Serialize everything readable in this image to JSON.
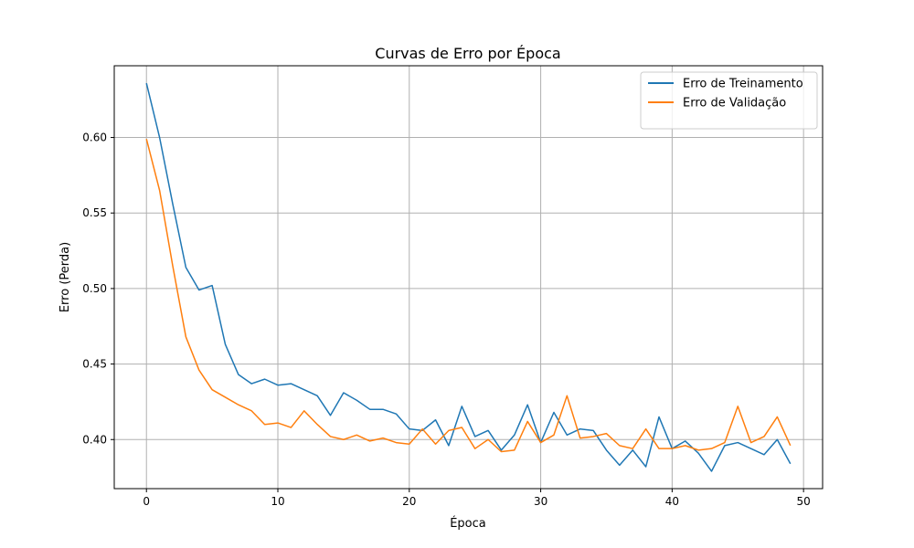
{
  "chart_data": {
    "type": "line",
    "title": "Curvas de Erro por Época",
    "xlabel": "Época",
    "ylabel": "Erro (Perda)",
    "xlim": [
      -2.45,
      51.45
    ],
    "ylim": [
      0.3675,
      0.6475
    ],
    "xticks": [
      0,
      10,
      20,
      30,
      40,
      50
    ],
    "xtick_labels": [
      "0",
      "10",
      "20",
      "30",
      "40",
      "50"
    ],
    "yticks": [
      0.4,
      0.45,
      0.5,
      0.55,
      0.6
    ],
    "ytick_labels": [
      "0.40",
      "0.45",
      "0.50",
      "0.55",
      "0.60"
    ],
    "grid": true,
    "legend_position": "top-right",
    "x": [
      0,
      1,
      2,
      3,
      4,
      5,
      6,
      7,
      8,
      9,
      10,
      11,
      12,
      13,
      14,
      15,
      16,
      17,
      18,
      19,
      20,
      21,
      22,
      23,
      24,
      25,
      26,
      27,
      28,
      29,
      30,
      31,
      32,
      33,
      34,
      35,
      36,
      37,
      38,
      39,
      40,
      41,
      42,
      43,
      44,
      45,
      46,
      47,
      48,
      49
    ],
    "series": [
      {
        "name": "Erro de Treinamento",
        "color": "#1f77b4",
        "values": [
          0.636,
          0.6,
          0.556,
          0.514,
          0.499,
          0.502,
          0.463,
          0.443,
          0.437,
          0.44,
          0.436,
          0.437,
          0.433,
          0.429,
          0.416,
          0.431,
          0.426,
          0.42,
          0.42,
          0.417,
          0.407,
          0.406,
          0.413,
          0.396,
          0.422,
          0.402,
          0.406,
          0.393,
          0.403,
          0.423,
          0.398,
          0.418,
          0.403,
          0.407,
          0.406,
          0.393,
          0.383,
          0.393,
          0.382,
          0.415,
          0.394,
          0.399,
          0.391,
          0.379,
          0.396,
          0.398,
          0.394,
          0.39,
          0.4,
          0.384
        ]
      },
      {
        "name": "Erro de Validação",
        "color": "#ff7f0e",
        "values": [
          0.599,
          0.565,
          0.515,
          0.468,
          0.446,
          0.433,
          0.428,
          0.423,
          0.419,
          0.41,
          0.411,
          0.408,
          0.419,
          0.41,
          0.402,
          0.4,
          0.403,
          0.399,
          0.401,
          0.398,
          0.397,
          0.407,
          0.397,
          0.406,
          0.408,
          0.394,
          0.4,
          0.392,
          0.393,
          0.412,
          0.398,
          0.403,
          0.429,
          0.401,
          0.402,
          0.404,
          0.396,
          0.394,
          0.407,
          0.394,
          0.394,
          0.396,
          0.393,
          0.394,
          0.398,
          0.422,
          0.398,
          0.402,
          0.415,
          0.396
        ]
      }
    ]
  }
}
